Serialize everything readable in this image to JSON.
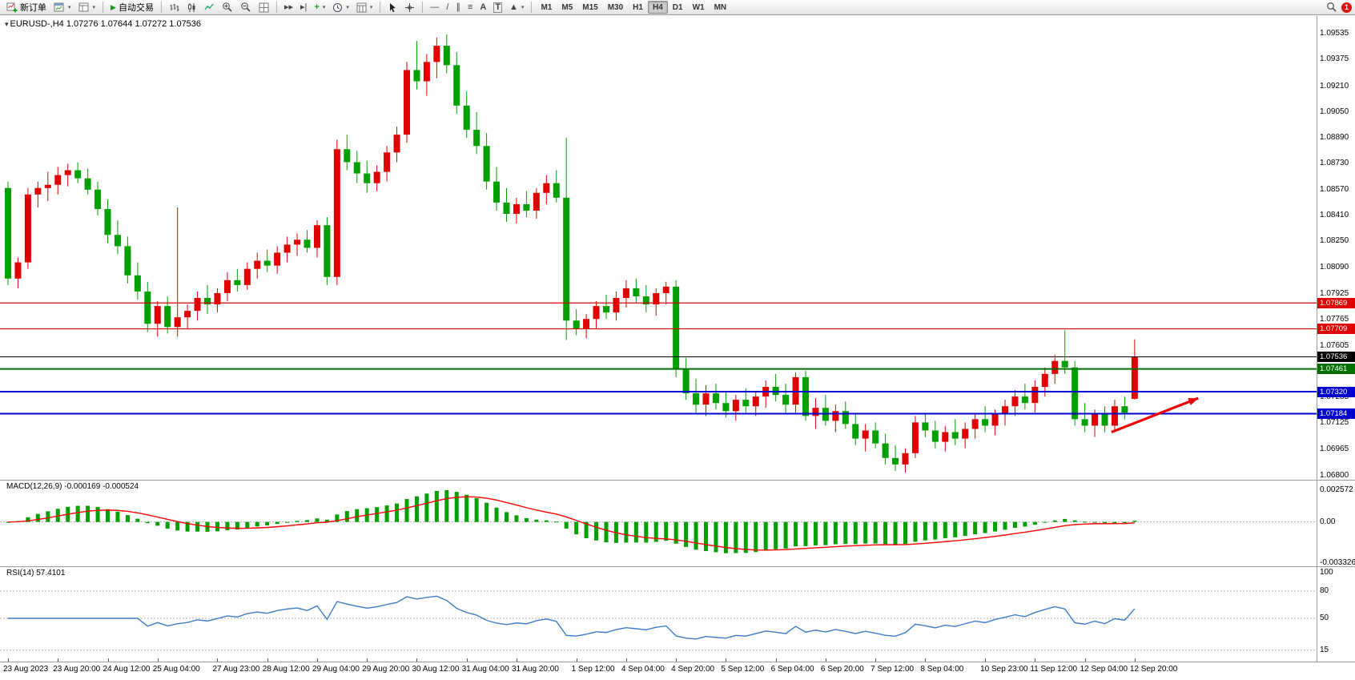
{
  "toolbar": {
    "new_order_label": "新订单",
    "auto_trading_label": "自动交易",
    "text_tool_label": "A",
    "textbox_tool_label": "T",
    "timeframes": [
      "M1",
      "M5",
      "M15",
      "M30",
      "H1",
      "H4",
      "D1",
      "W1",
      "MN"
    ],
    "active_timeframe": "H4",
    "notification_count": "1"
  },
  "chart": {
    "title": "EURUSD-,H4 1.07276 1.07644 1.07272 1.07536",
    "macd_label": "MACD(12,26,9) -0.000169 -0.000524",
    "rsi_label": "RSI(14) 57.4101",
    "price_axis_labels": [
      "1.09535",
      "1.09375",
      "1.09210",
      "1.09050",
      "1.08890",
      "1.08730",
      "1.08570",
      "1.08410",
      "1.08250",
      "1.08090",
      "1.07925",
      "1.07765",
      "1.07605",
      "1.07445",
      "1.07285",
      "1.07125",
      "1.06965",
      "1.06800"
    ],
    "price_badges": [
      {
        "value": "1.07869",
        "color": "#e00000"
      },
      {
        "value": "1.07709",
        "color": "#e00000"
      },
      {
        "value": "1.07536",
        "color": "#000000"
      },
      {
        "value": "1.07461",
        "color": "#007000"
      },
      {
        "value": "1.07320",
        "color": "#0000d0"
      },
      {
        "value": "1.07184",
        "color": "#0000d0"
      }
    ],
    "macd_axis_labels": [
      "0.002572",
      "0.00",
      "-0.003326"
    ],
    "rsi_axis_labels": [
      "100",
      "80",
      "50",
      "15"
    ],
    "time_labels": [
      "23 Aug 2023",
      "23 Aug 20:00",
      "24 Aug 12:00",
      "25 Aug 04:00",
      "27 Aug 23:00",
      "28 Aug 12:00",
      "29 Aug 04:00",
      "29 Aug 20:00",
      "30 Aug 12:00",
      "31 Aug 04:00",
      "31 Aug 20:00",
      "1 Sep 12:00",
      "4 Sep 04:00",
      "4 Sep 20:00",
      "5 Sep 12:00",
      "6 Sep 04:00",
      "6 Sep 20:00",
      "7 Sep 12:00",
      "8 Sep 04:00",
      "10 Sep 23:00",
      "11 Sep 12:00",
      "12 Sep 04:00",
      "12 Sep 20:00"
    ]
  },
  "chart_data": {
    "type": "candlestick",
    "symbol": "EURUSD-",
    "timeframe": "H4",
    "bull_color": "#e00000",
    "bear_color": "#00a000",
    "ylim": [
      1.068,
      1.09535
    ],
    "ohlc": [
      [
        1.0858,
        1.0862,
        1.0798,
        1.0802
      ],
      [
        1.0802,
        1.0815,
        1.0796,
        1.0812
      ],
      [
        1.0812,
        1.0858,
        1.0808,
        1.0854
      ],
      [
        1.0854,
        1.0862,
        1.0846,
        1.0858
      ],
      [
        1.0858,
        1.0868,
        1.085,
        1.086
      ],
      [
        1.086,
        1.0871,
        1.0854,
        1.0866
      ],
      [
        1.0866,
        1.0873,
        1.0859,
        1.0869
      ],
      [
        1.0869,
        1.0874,
        1.0861,
        1.0864
      ],
      [
        1.0864,
        1.087,
        1.0854,
        1.0857
      ],
      [
        1.0857,
        1.0862,
        1.0841,
        1.0845
      ],
      [
        1.0845,
        1.0851,
        1.0824,
        1.0829
      ],
      [
        1.0829,
        1.0838,
        1.0817,
        1.0822
      ],
      [
        1.0822,
        1.0828,
        1.0799,
        1.0804
      ],
      [
        1.0804,
        1.0812,
        1.0789,
        1.0794
      ],
      [
        1.0794,
        1.08,
        1.0769,
        1.0774
      ],
      [
        1.0774,
        1.0788,
        1.0766,
        1.0785
      ],
      [
        1.0785,
        1.0791,
        1.0768,
        1.0772
      ],
      [
        1.0772,
        1.0846,
        1.0766,
        1.0778
      ],
      [
        1.0778,
        1.0786,
        1.0771,
        1.0782
      ],
      [
        1.0782,
        1.0794,
        1.0776,
        1.079
      ],
      [
        1.079,
        1.0798,
        1.078,
        1.0786
      ],
      [
        1.0786,
        1.0796,
        1.0781,
        1.0793
      ],
      [
        1.0793,
        1.0806,
        1.0788,
        1.0801
      ],
      [
        1.0801,
        1.0808,
        1.0794,
        1.0798
      ],
      [
        1.0798,
        1.0812,
        1.0795,
        1.0808
      ],
      [
        1.0808,
        1.0818,
        1.0802,
        1.0813
      ],
      [
        1.0813,
        1.082,
        1.0806,
        1.081
      ],
      [
        1.081,
        1.0822,
        1.0805,
        1.0818
      ],
      [
        1.0818,
        1.0828,
        1.0812,
        1.0823
      ],
      [
        1.0823,
        1.083,
        1.0816,
        1.0826
      ],
      [
        1.0826,
        1.0832,
        1.0818,
        1.0821
      ],
      [
        1.0821,
        1.0838,
        1.0815,
        1.0835
      ],
      [
        1.0835,
        1.084,
        1.0798,
        1.0803
      ],
      [
        1.0803,
        1.0888,
        1.0798,
        1.0882
      ],
      [
        1.0882,
        1.0891,
        1.0869,
        1.0874
      ],
      [
        1.0874,
        1.0881,
        1.0861,
        1.0867
      ],
      [
        1.0867,
        1.0875,
        1.0855,
        1.0861
      ],
      [
        1.0861,
        1.0872,
        1.0856,
        1.0868
      ],
      [
        1.0868,
        1.0884,
        1.0862,
        1.088
      ],
      [
        1.088,
        1.0896,
        1.0874,
        1.0891
      ],
      [
        1.0891,
        1.0936,
        1.0886,
        1.0931
      ],
      [
        1.0931,
        1.0949,
        1.0919,
        1.0924
      ],
      [
        1.0924,
        1.0941,
        1.0915,
        1.0936
      ],
      [
        1.0936,
        1.0951,
        1.0926,
        1.0946
      ],
      [
        1.0946,
        1.0953,
        1.0929,
        1.0934
      ],
      [
        1.0934,
        1.0942,
        1.0904,
        1.0909
      ],
      [
        1.0909,
        1.0918,
        1.0889,
        1.0894
      ],
      [
        1.0894,
        1.0905,
        1.0879,
        1.0884
      ],
      [
        1.0884,
        1.0892,
        1.0857,
        1.0862
      ],
      [
        1.0862,
        1.0871,
        1.0844,
        1.0849
      ],
      [
        1.0849,
        1.0858,
        1.0837,
        1.0842
      ],
      [
        1.0842,
        1.0852,
        1.0836,
        1.0848
      ],
      [
        1.0848,
        1.0856,
        1.084,
        1.0844
      ],
      [
        1.0844,
        1.0858,
        1.0839,
        1.0855
      ],
      [
        1.0855,
        1.0866,
        1.0848,
        1.0861
      ],
      [
        1.0861,
        1.0869,
        1.0849,
        1.0852
      ],
      [
        1.0852,
        1.0889,
        1.0764,
        1.0776
      ],
      [
        1.0776,
        1.0783,
        1.0767,
        1.0771
      ],
      [
        1.0771,
        1.078,
        1.0765,
        1.0777
      ],
      [
        1.0777,
        1.0788,
        1.0771,
        1.0785
      ],
      [
        1.0785,
        1.0792,
        1.0777,
        1.0781
      ],
      [
        1.0781,
        1.0794,
        1.0776,
        1.079
      ],
      [
        1.079,
        1.0801,
        1.0784,
        1.0796
      ],
      [
        1.0796,
        1.0802,
        1.0787,
        1.0791
      ],
      [
        1.0791,
        1.0798,
        1.0781,
        1.0786
      ],
      [
        1.0786,
        1.0796,
        1.0779,
        1.0793
      ],
      [
        1.0793,
        1.08,
        1.0786,
        1.0797
      ],
      [
        1.0797,
        1.0801,
        1.0741,
        1.0746
      ],
      [
        1.0746,
        1.0753,
        1.0727,
        1.0731
      ],
      [
        1.0731,
        1.074,
        1.0719,
        1.0724
      ],
      [
        1.0724,
        1.0736,
        1.0717,
        1.0731
      ],
      [
        1.0731,
        1.0737,
        1.0721,
        1.0725
      ],
      [
        1.0725,
        1.0732,
        1.0716,
        1.072
      ],
      [
        1.072,
        1.073,
        1.0714,
        1.0727
      ],
      [
        1.0727,
        1.0734,
        1.0719,
        1.0723
      ],
      [
        1.0723,
        1.0732,
        1.0717,
        1.0729
      ],
      [
        1.0729,
        1.0739,
        1.0722,
        1.0735
      ],
      [
        1.0735,
        1.0743,
        1.0726,
        1.073
      ],
      [
        1.073,
        1.0737,
        1.0719,
        1.0724
      ],
      [
        1.0724,
        1.0744,
        1.0719,
        1.0741
      ],
      [
        1.0741,
        1.0745,
        1.0714,
        1.0717
      ],
      [
        1.0717,
        1.0728,
        1.0709,
        1.0722
      ],
      [
        1.0722,
        1.073,
        1.0711,
        1.0714
      ],
      [
        1.0714,
        1.0724,
        1.0707,
        1.072
      ],
      [
        1.072,
        1.0726,
        1.0709,
        1.0712
      ],
      [
        1.0712,
        1.0719,
        1.0699,
        1.0703
      ],
      [
        1.0703,
        1.0712,
        1.0695,
        1.0708
      ],
      [
        1.0708,
        1.0713,
        1.0697,
        1.07
      ],
      [
        1.07,
        1.0706,
        1.0687,
        1.0691
      ],
      [
        1.0691,
        1.0699,
        1.0683,
        1.0687
      ],
      [
        1.0687,
        1.0697,
        1.0682,
        1.0694
      ],
      [
        1.0694,
        1.0717,
        1.0691,
        1.0713
      ],
      [
        1.0713,
        1.0719,
        1.0704,
        1.0708
      ],
      [
        1.0708,
        1.0714,
        1.0697,
        1.0701
      ],
      [
        1.0701,
        1.0711,
        1.0695,
        1.0707
      ],
      [
        1.0707,
        1.0715,
        1.0699,
        1.0703
      ],
      [
        1.0703,
        1.0713,
        1.0697,
        1.0709
      ],
      [
        1.0709,
        1.0719,
        1.0703,
        1.0715
      ],
      [
        1.0715,
        1.0723,
        1.0707,
        1.0711
      ],
      [
        1.0711,
        1.0721,
        1.0705,
        1.0718
      ],
      [
        1.0718,
        1.0727,
        1.0711,
        1.0723
      ],
      [
        1.0723,
        1.0733,
        1.0717,
        1.0729
      ],
      [
        1.0729,
        1.0737,
        1.0721,
        1.0725
      ],
      [
        1.0725,
        1.0739,
        1.0719,
        1.0735
      ],
      [
        1.0735,
        1.0747,
        1.0729,
        1.0743
      ],
      [
        1.0743,
        1.0755,
        1.0737,
        1.0751
      ],
      [
        1.0751,
        1.077,
        1.0743,
        1.0747
      ],
      [
        1.0747,
        1.0751,
        1.0711,
        1.0715
      ],
      [
        1.0715,
        1.0725,
        1.0707,
        1.0711
      ],
      [
        1.0711,
        1.0721,
        1.0704,
        1.0718
      ],
      [
        1.0718,
        1.0723,
        1.0707,
        1.0711
      ],
      [
        1.0711,
        1.0727,
        1.0707,
        1.0723
      ],
      [
        1.0723,
        1.0729,
        1.0715,
        1.0719
      ],
      [
        1.07276,
        1.07644,
        1.07272,
        1.07536
      ]
    ],
    "hlines": [
      {
        "price": 1.07869,
        "color": "#e00000",
        "width": 1.2
      },
      {
        "price": 1.07709,
        "color": "#e00000",
        "width": 1.2
      },
      {
        "price": 1.07536,
        "color": "#000000",
        "width": 1
      },
      {
        "price": 1.07461,
        "color": "#007000",
        "width": 2
      },
      {
        "price": 1.0732,
        "color": "#0000d0",
        "width": 2
      },
      {
        "price": 1.07184,
        "color": "#0000d0",
        "width": 2
      }
    ],
    "arrow": {
      "from": [
        111,
        1.0707
      ],
      "to": [
        119.7,
        1.0728
      ],
      "color": "#f00000",
      "width": 3.2
    },
    "indicators": {
      "macd": {
        "params": [
          12,
          26,
          9
        ],
        "value": -0.000169,
        "signal_value": -0.000524,
        "ylim": [
          -0.003326,
          0.002572
        ],
        "hist_color": "#00a000",
        "signal_color": "#ff0000"
      },
      "rsi": {
        "period": 14,
        "value": 57.4101,
        "color": "#3c7cc8",
        "levels": [
          80,
          50,
          15
        ],
        "ylim": [
          0,
          100
        ]
      }
    }
  }
}
